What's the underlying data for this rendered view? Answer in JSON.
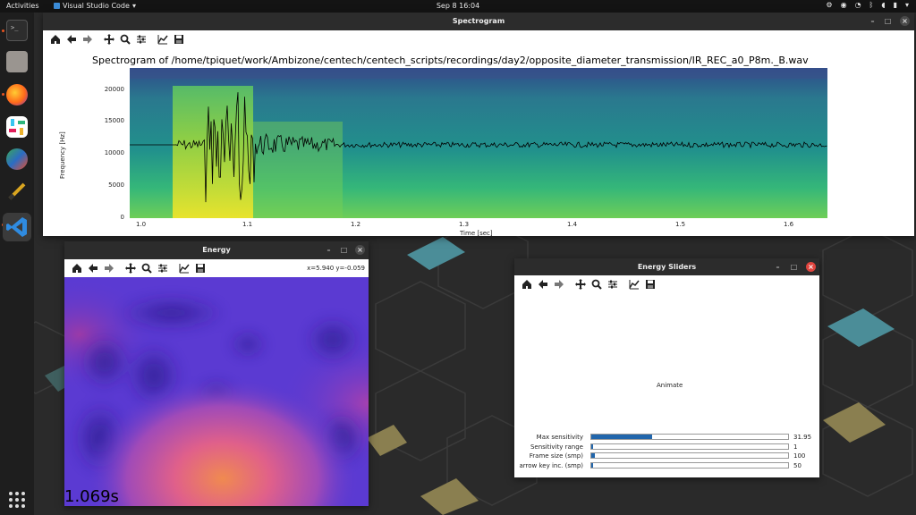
{
  "topbar": {
    "activities": "Activities",
    "app_name": "Visual Studio Code",
    "clock": "Sep 8  16:04"
  },
  "dock": {
    "items": [
      "terminal-icon",
      "files-icon",
      "firefox-icon",
      "slack-icon",
      "app-icon",
      "pen-tool-icon",
      "vscode-icon",
      "apps-grid-icon"
    ]
  },
  "spectrogram_window": {
    "title": "Spectrogram",
    "plot_title": "Spectrogram of /home/tpiquet/work/Ambizone/centech/centech_scripts/recordings/day2/opposite_diameter_transmission/IR_REC_a0_P8m._B.wav",
    "ylabel": "Frequency [Hz]",
    "xlabel": "Time [sec]",
    "y_ticks": [
      "20000",
      "15000",
      "10000",
      "5000",
      "0"
    ],
    "x_ticks": [
      "1.0",
      "1.1",
      "1.2",
      "1.3",
      "1.4",
      "1.5",
      "1.6"
    ]
  },
  "energy_window": {
    "title": "Energy",
    "coords": "x=5.940 y=-0.059",
    "time_label": "1.069s"
  },
  "sliders_window": {
    "title": "Energy Sliders",
    "animate_label": "Animate",
    "sliders": [
      {
        "label": "Max sensitivity",
        "value": "31.95",
        "fraction": 0.31
      },
      {
        "label": "Sensitivity range",
        "value": "1",
        "fraction": 0.0
      },
      {
        "label": "Frame size (smp)",
        "value": "100",
        "fraction": 0.02
      },
      {
        "label": "arrow key inc. (smp)",
        "value": "50",
        "fraction": 0.01
      }
    ]
  },
  "toolbar_icons": [
    "home-icon",
    "back-icon",
    "forward-icon",
    "pan-icon",
    "zoom-icon",
    "configure-icon",
    "edit-axis-icon",
    "save-icon"
  ],
  "colors": {
    "accent": "#e95420",
    "slider_fill": "#2166ac",
    "titlebar": "#2c2c2c"
  }
}
